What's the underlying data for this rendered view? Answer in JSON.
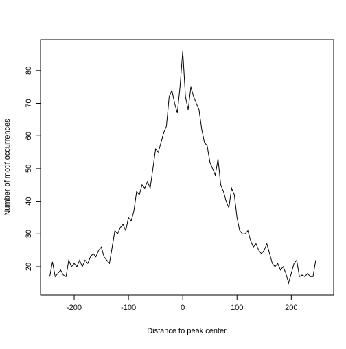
{
  "chart_data": {
    "type": "line",
    "xlabel": "Distance to peak center",
    "ylabel": "Number of motif occurrences",
    "x": [
      -245,
      -240,
      -235,
      -230,
      -225,
      -220,
      -215,
      -210,
      -205,
      -200,
      -195,
      -190,
      -185,
      -180,
      -175,
      -170,
      -165,
      -160,
      -155,
      -150,
      -145,
      -140,
      -135,
      -130,
      -125,
      -120,
      -115,
      -110,
      -105,
      -100,
      -95,
      -90,
      -85,
      -80,
      -75,
      -70,
      -65,
      -60,
      -55,
      -50,
      -45,
      -40,
      -35,
      -30,
      -25,
      -20,
      -15,
      -10,
      -5,
      0,
      5,
      10,
      15,
      20,
      25,
      30,
      35,
      40,
      45,
      50,
      55,
      60,
      65,
      70,
      75,
      80,
      85,
      90,
      95,
      100,
      105,
      110,
      115,
      120,
      125,
      130,
      135,
      140,
      145,
      150,
      155,
      160,
      165,
      170,
      175,
      180,
      185,
      190,
      195,
      200,
      205,
      210,
      215,
      220,
      225,
      230,
      235,
      240,
      245
    ],
    "series": [
      {
        "color": "#000000",
        "values": [
          17,
          21.5,
          17,
          18,
          19,
          17.5,
          17,
          22,
          20,
          21,
          20,
          22,
          20,
          22,
          21,
          23,
          24,
          23,
          25,
          26,
          23,
          22,
          21,
          26,
          31,
          30,
          32,
          33,
          31,
          35,
          34,
          37,
          43,
          42,
          45,
          44,
          46,
          44,
          50,
          56,
          55,
          58,
          61,
          63,
          72,
          74,
          70,
          67,
          75,
          86,
          72,
          68,
          75,
          72,
          70,
          68,
          62,
          58,
          57,
          52,
          50,
          48,
          53,
          45,
          43,
          40,
          38,
          44,
          42,
          35,
          31,
          30,
          30,
          31,
          28,
          26,
          27,
          25,
          24,
          25,
          27,
          24,
          21,
          20,
          21,
          19,
          20,
          18,
          15,
          18,
          21,
          22,
          17,
          17.5,
          17,
          18,
          17,
          17,
          22
        ]
      }
    ],
    "xlim": [
      -262,
      278
    ],
    "ylim": [
      11.4,
      89.4
    ],
    "xticks": [
      -200,
      -100,
      0,
      100,
      200
    ],
    "yticks": [
      20,
      30,
      40,
      50,
      60,
      70,
      80
    ]
  }
}
